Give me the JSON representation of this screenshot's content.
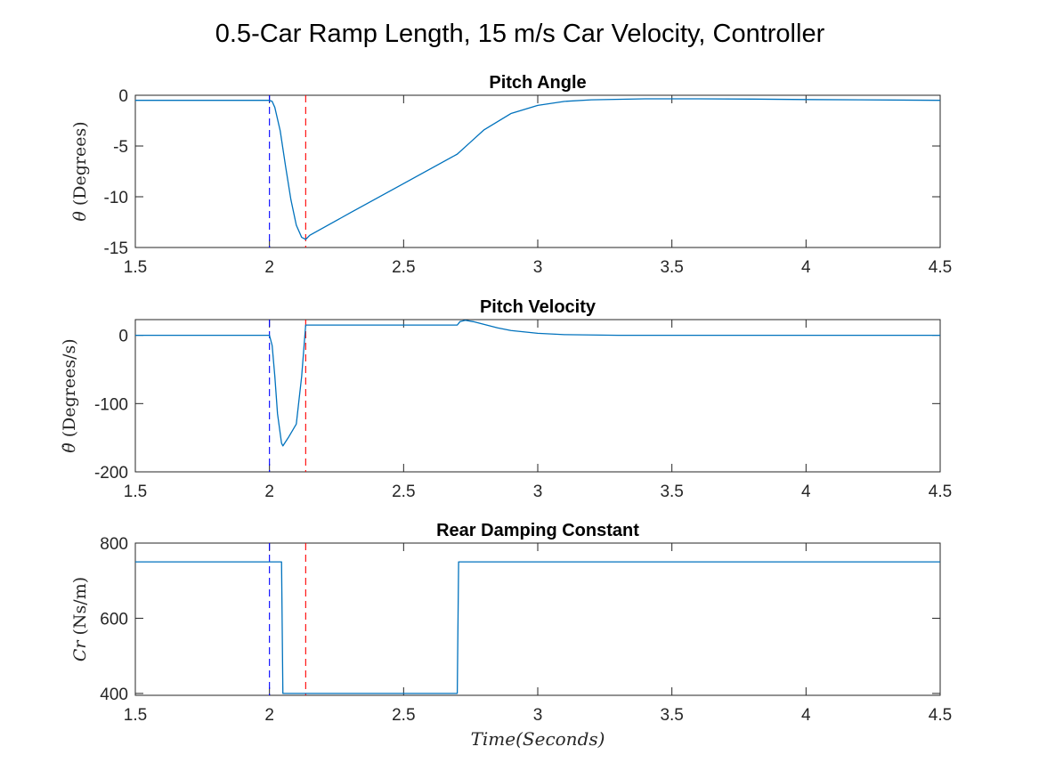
{
  "figure_title": "0.5-Car Ramp Length,  15 m/s Car Velocity,  Controller",
  "colors": {
    "series": "#0072BD",
    "marker_blue": "#0000FF",
    "marker_red": "#FF0000",
    "axes": "#262626"
  },
  "chart_data": [
    {
      "type": "line",
      "title": "Pitch Angle",
      "ylabel_symbol": "θ",
      "ylabel_unit": "(Degrees)",
      "xlabel": "",
      "xlim": [
        1.5,
        4.5
      ],
      "ylim": [
        -15,
        0
      ],
      "xticks": [
        1.5,
        2,
        2.5,
        3,
        3.5,
        4,
        4.5
      ],
      "yticks": [
        0,
        -5,
        -10,
        -15
      ],
      "vlines": [
        {
          "x": 2.0,
          "color": "marker_blue",
          "style": "dashed"
        },
        {
          "x": 2.135,
          "color": "marker_red",
          "style": "dashed"
        }
      ],
      "series": [
        {
          "x": [
            1.5,
            2.0,
            2.01,
            2.02,
            2.04,
            2.06,
            2.08,
            2.1,
            2.12,
            2.135,
            2.15,
            2.3,
            2.5,
            2.7,
            2.75,
            2.8,
            2.9,
            3.0,
            3.1,
            3.2,
            3.4,
            3.6,
            3.8,
            4.0,
            4.2,
            4.5
          ],
          "y": [
            -0.5,
            -0.5,
            -0.6,
            -1.2,
            -3.5,
            -7.0,
            -10.3,
            -12.8,
            -14.0,
            -14.2,
            -13.8,
            -11.6,
            -8.7,
            -5.8,
            -4.6,
            -3.4,
            -1.8,
            -1.0,
            -0.6,
            -0.45,
            -0.35,
            -0.35,
            -0.38,
            -0.42,
            -0.45,
            -0.5
          ]
        }
      ]
    },
    {
      "type": "line",
      "title": "Pitch Velocity",
      "ylabel_symbol": "θ̇",
      "ylabel_unit": "(Degrees/s)",
      "xlabel": "",
      "xlim": [
        1.5,
        4.5
      ],
      "ylim": [
        -200,
        23
      ],
      "xticks": [
        1.5,
        2,
        2.5,
        3,
        3.5,
        4,
        4.5
      ],
      "yticks": [
        0,
        -100,
        -200
      ],
      "vlines": [
        {
          "x": 2.0,
          "color": "marker_blue",
          "style": "dashed"
        },
        {
          "x": 2.135,
          "color": "marker_red",
          "style": "dashed"
        }
      ],
      "series": [
        {
          "x": [
            1.5,
            2.0,
            2.01,
            2.02,
            2.03,
            2.045,
            2.05,
            2.07,
            2.1,
            2.12,
            2.135,
            2.14,
            2.5,
            2.7,
            2.71,
            2.73,
            2.76,
            2.8,
            2.85,
            2.9,
            3.0,
            3.1,
            3.3,
            3.5,
            4.0,
            4.5
          ],
          "y": [
            0,
            0,
            -15,
            -60,
            -115,
            -158,
            -162,
            -150,
            -130,
            -60,
            15,
            15,
            15,
            15,
            20,
            22,
            20,
            16,
            11,
            7,
            3,
            1,
            0,
            0,
            0,
            0
          ]
        }
      ]
    },
    {
      "type": "line",
      "title": "Rear Damping Constant",
      "ylabel_symbol": "Cr",
      "ylabel_unit": "(Ns/m)",
      "xlabel": "Time(Seconds)",
      "xlim": [
        1.5,
        4.5
      ],
      "ylim": [
        395,
        800
      ],
      "xticks": [
        1.5,
        2,
        2.5,
        3,
        3.5,
        4,
        4.5
      ],
      "yticks": [
        800,
        600,
        400
      ],
      "vlines": [
        {
          "x": 2.0,
          "color": "marker_blue",
          "style": "dashed"
        },
        {
          "x": 2.135,
          "color": "marker_red",
          "style": "dashed"
        }
      ],
      "series": [
        {
          "x": [
            1.5,
            2.04,
            2.045,
            2.05,
            2.7,
            2.705,
            2.71,
            4.5
          ],
          "y": [
            750,
            750,
            750,
            400,
            400,
            750,
            750,
            750
          ]
        }
      ]
    }
  ]
}
